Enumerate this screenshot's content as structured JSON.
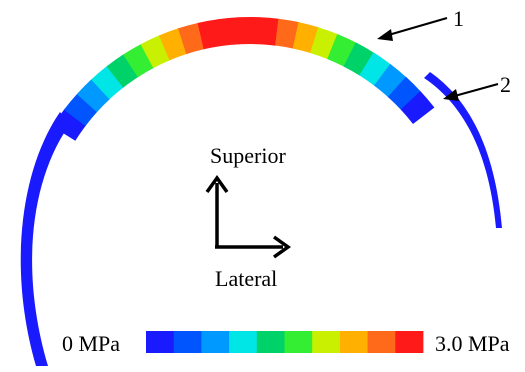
{
  "callouts": {
    "one": "1",
    "two": "2"
  },
  "axes": {
    "superior": "Superior",
    "lateral": "Lateral"
  },
  "legend": {
    "min_label": "0 MPa",
    "max_label": "3.0 MPa",
    "colors": [
      "#1a1aff",
      "#0055ff",
      "#0099ff",
      "#00e5e5",
      "#00d26a",
      "#33ee33",
      "#c8f000",
      "#ffb000",
      "#ff6a1a",
      "#ff1a1a"
    ]
  },
  "colors": {
    "substrate": "#1a1aff",
    "ink": "#000000"
  }
}
